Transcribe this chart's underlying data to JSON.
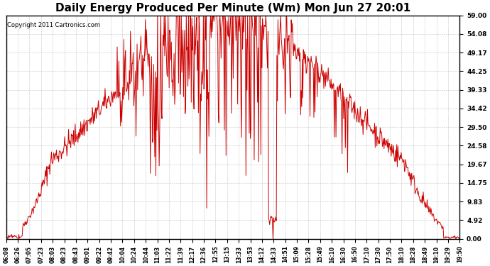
{
  "title": "Daily Energy Produced Per Minute (Wm) Mon Jun 27 20:01",
  "copyright": "Copyright 2011 Cartronics.com",
  "line_color": "#cc0000",
  "bg_color": "#ffffff",
  "grid_color": "#aaaaaa",
  "yticks": [
    0.0,
    4.92,
    9.83,
    14.75,
    19.67,
    24.58,
    29.5,
    34.42,
    39.33,
    44.25,
    49.17,
    54.08,
    59.0
  ],
  "ymax": 59.0,
  "ymin": 0.0,
  "xtick_labels": [
    "06:08",
    "06:26",
    "07:05",
    "07:23",
    "08:03",
    "08:23",
    "08:43",
    "09:01",
    "09:22",
    "09:42",
    "10:04",
    "10:24",
    "10:44",
    "11:03",
    "11:22",
    "11:39",
    "12:17",
    "12:36",
    "12:55",
    "13:15",
    "13:33",
    "13:53",
    "14:12",
    "14:33",
    "14:51",
    "15:09",
    "15:28",
    "15:49",
    "16:10",
    "16:30",
    "16:50",
    "17:10",
    "17:30",
    "17:50",
    "18:10",
    "18:28",
    "18:49",
    "19:10",
    "19:29",
    "19:50"
  ]
}
